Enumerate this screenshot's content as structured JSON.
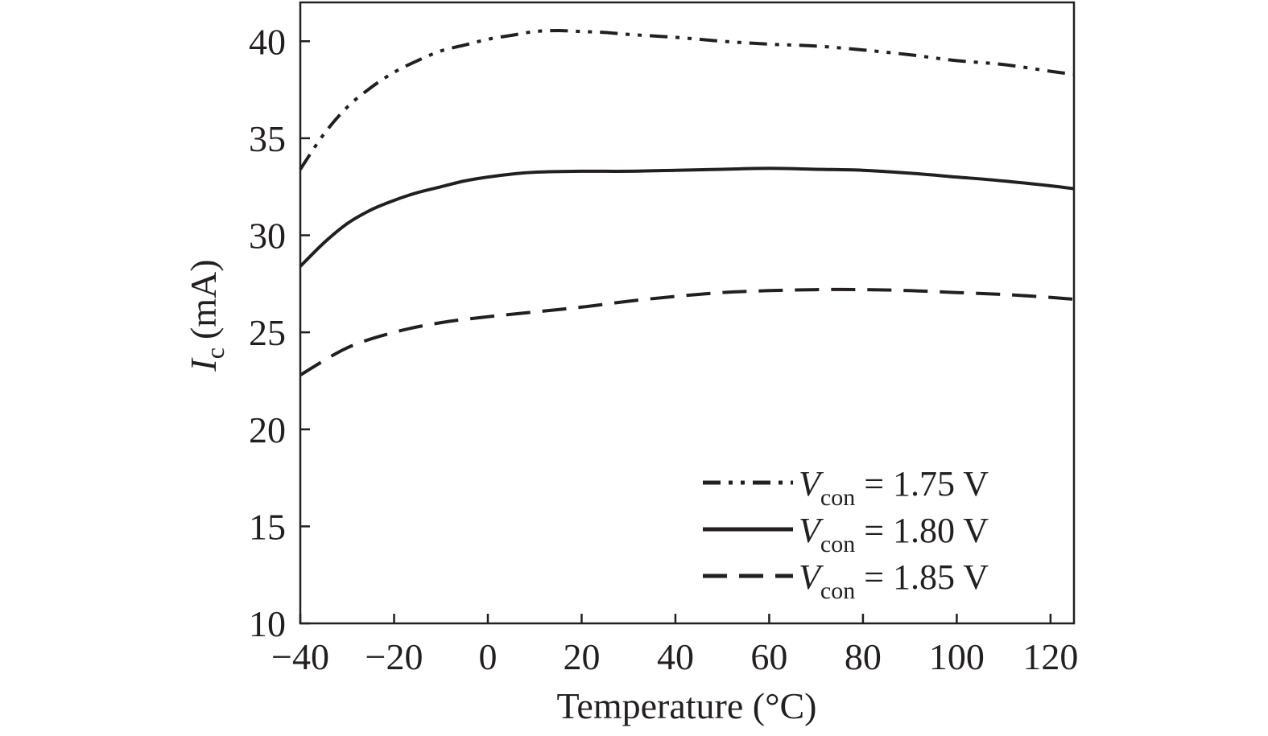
{
  "chart_data": {
    "type": "line",
    "xlabel": "Temperature (°C)",
    "ylabel": {
      "symbol": "I",
      "subscript": "c",
      "unit": "(mA)"
    },
    "xlim": [
      -40,
      125
    ],
    "ylim": [
      10,
      42
    ],
    "xticks": [
      -40,
      -20,
      0,
      20,
      40,
      60,
      80,
      100,
      120
    ],
    "xtick_labels": [
      "−40",
      "−20",
      "0",
      "20",
      "40",
      "60",
      "80",
      "100",
      "120"
    ],
    "yticks": [
      10,
      15,
      20,
      25,
      30,
      35,
      40
    ],
    "ytick_labels": [
      "10",
      "15",
      "20",
      "25",
      "30",
      "35",
      "40"
    ],
    "grid": false,
    "legend_position": "bottom-right",
    "line_color": "#231f20",
    "series": [
      {
        "name": "V_con = 1.75 V",
        "label": {
          "symbol": "V",
          "subscript": "con",
          "value": " = 1.75 V"
        },
        "style": "dash-dot-dot",
        "x": [
          -40,
          -35,
          -30,
          -25,
          -20,
          -15,
          -10,
          -5,
          0,
          5,
          10,
          15,
          20,
          25,
          30,
          40,
          50,
          60,
          70,
          80,
          90,
          100,
          110,
          120,
          125
        ],
        "y": [
          33.4,
          35.2,
          36.6,
          37.6,
          38.4,
          39.0,
          39.5,
          39.8,
          40.1,
          40.3,
          40.5,
          40.55,
          40.5,
          40.45,
          40.35,
          40.2,
          40.0,
          39.85,
          39.75,
          39.55,
          39.3,
          39.0,
          38.8,
          38.45,
          38.3
        ]
      },
      {
        "name": "V_con = 1.80 V",
        "label": {
          "symbol": "V",
          "subscript": "con",
          "value": " = 1.80 V"
        },
        "style": "solid",
        "x": [
          -40,
          -35,
          -30,
          -25,
          -20,
          -15,
          -10,
          -5,
          0,
          5,
          10,
          20,
          30,
          40,
          50,
          60,
          70,
          80,
          90,
          100,
          110,
          120,
          125
        ],
        "y": [
          28.4,
          29.6,
          30.6,
          31.3,
          31.8,
          32.2,
          32.5,
          32.8,
          33.0,
          33.15,
          33.25,
          33.3,
          33.3,
          33.35,
          33.4,
          33.45,
          33.4,
          33.35,
          33.2,
          33.0,
          32.8,
          32.55,
          32.4
        ]
      },
      {
        "name": "V_con = 1.85 V",
        "label": {
          "symbol": "V",
          "subscript": "con",
          "value": " = 1.85 V"
        },
        "style": "dashed",
        "x": [
          -40,
          -30,
          -20,
          -10,
          0,
          10,
          20,
          30,
          40,
          50,
          60,
          70,
          80,
          90,
          100,
          110,
          120,
          125
        ],
        "y": [
          22.8,
          24.2,
          25.0,
          25.5,
          25.8,
          26.05,
          26.3,
          26.6,
          26.85,
          27.05,
          27.15,
          27.2,
          27.2,
          27.15,
          27.05,
          26.95,
          26.8,
          26.7
        ]
      }
    ]
  }
}
